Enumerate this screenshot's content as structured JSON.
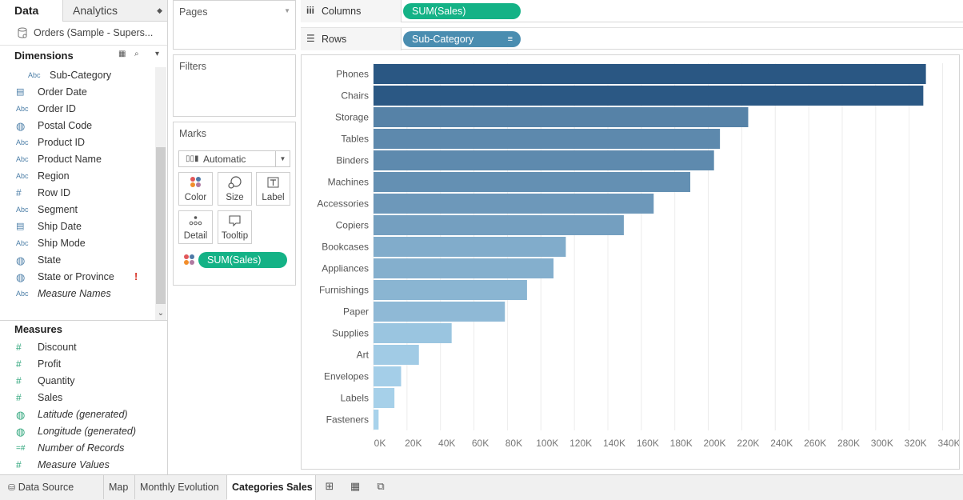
{
  "left_pane": {
    "tabs": {
      "data": "Data",
      "analytics": "Analytics"
    },
    "datasource": "Orders (Sample - Supers...",
    "dimensions_header": "Dimensions",
    "dimensions": [
      {
        "icon": "Abc",
        "label": "Sub-Category",
        "italic": false
      },
      {
        "icon": "calendar",
        "label": "Order Date",
        "italic": false
      },
      {
        "icon": "Abc",
        "label": "Order ID",
        "italic": false
      },
      {
        "icon": "globe",
        "label": "Postal Code",
        "italic": false
      },
      {
        "icon": "Abc",
        "label": "Product ID",
        "italic": false
      },
      {
        "icon": "Abc",
        "label": "Product Name",
        "italic": false
      },
      {
        "icon": "Abc",
        "label": "Region",
        "italic": false
      },
      {
        "icon": "#",
        "label": "Row ID",
        "italic": false
      },
      {
        "icon": "Abc",
        "label": "Segment",
        "italic": false
      },
      {
        "icon": "calendar",
        "label": "Ship Date",
        "italic": false
      },
      {
        "icon": "Abc",
        "label": "Ship Mode",
        "italic": false
      },
      {
        "icon": "globe",
        "label": "State",
        "italic": false
      },
      {
        "icon": "globe",
        "label": "State or Province",
        "italic": false,
        "warning": "!"
      },
      {
        "icon": "Abc",
        "label": "Measure Names",
        "italic": true
      }
    ],
    "measures_header": "Measures",
    "measures": [
      {
        "icon": "#",
        "label": "Discount",
        "italic": false
      },
      {
        "icon": "#",
        "label": "Profit",
        "italic": false
      },
      {
        "icon": "#",
        "label": "Quantity",
        "italic": false
      },
      {
        "icon": "#",
        "label": "Sales",
        "italic": false
      },
      {
        "icon": "globe",
        "label": "Latitude (generated)",
        "italic": true
      },
      {
        "icon": "globe",
        "label": "Longitude (generated)",
        "italic": true
      },
      {
        "icon": "=#",
        "label": "Number of Records",
        "italic": true
      },
      {
        "icon": "#",
        "label": "Measure Values",
        "italic": true
      }
    ]
  },
  "cards": {
    "pages": "Pages",
    "filters": "Filters",
    "marks": "Marks",
    "mark_type": "Automatic",
    "buttons": {
      "color": "Color",
      "size": "Size",
      "label": "Label",
      "detail": "Detail",
      "tooltip": "Tooltip"
    },
    "marks_pill": "SUM(Sales)"
  },
  "shelves": {
    "columns_label": "Columns",
    "columns_pill": "SUM(Sales)",
    "rows_label": "Rows",
    "rows_pill": "Sub-Category"
  },
  "chart_data": {
    "type": "bar",
    "orientation": "horizontal",
    "categories": [
      "Phones",
      "Chairs",
      "Storage",
      "Tables",
      "Binders",
      "Machines",
      "Accessories",
      "Copiers",
      "Bookcases",
      "Appliances",
      "Furnishings",
      "Paper",
      "Supplies",
      "Art",
      "Envelopes",
      "Labels",
      "Fasteners"
    ],
    "values": [
      330007,
      328449,
      223844,
      206966,
      203413,
      189239,
      167380,
      149528,
      114880,
      107532,
      91705,
      78479,
      46674,
      27119,
      16476,
      12486,
      3024
    ],
    "xlim": [
      0,
      345000
    ],
    "x_ticks": [
      0,
      20000,
      40000,
      60000,
      80000,
      100000,
      120000,
      140000,
      160000,
      180000,
      200000,
      220000,
      240000,
      260000,
      280000,
      300000,
      320000,
      340000
    ],
    "x_tick_labels": [
      "0K",
      "20K",
      "40K",
      "60K",
      "80K",
      "100K",
      "120K",
      "140K",
      "160K",
      "180K",
      "200K",
      "220K",
      "240K",
      "260K",
      "280K",
      "300K",
      "320K",
      "340K"
    ],
    "grid": true,
    "color_range": [
      "#a9d3ec",
      "#2a5783"
    ]
  },
  "bottom_tabs": {
    "datasource": "Data Source",
    "map": "Map",
    "monthly": "Monthly Evolution",
    "categories": "Categories Sales"
  }
}
